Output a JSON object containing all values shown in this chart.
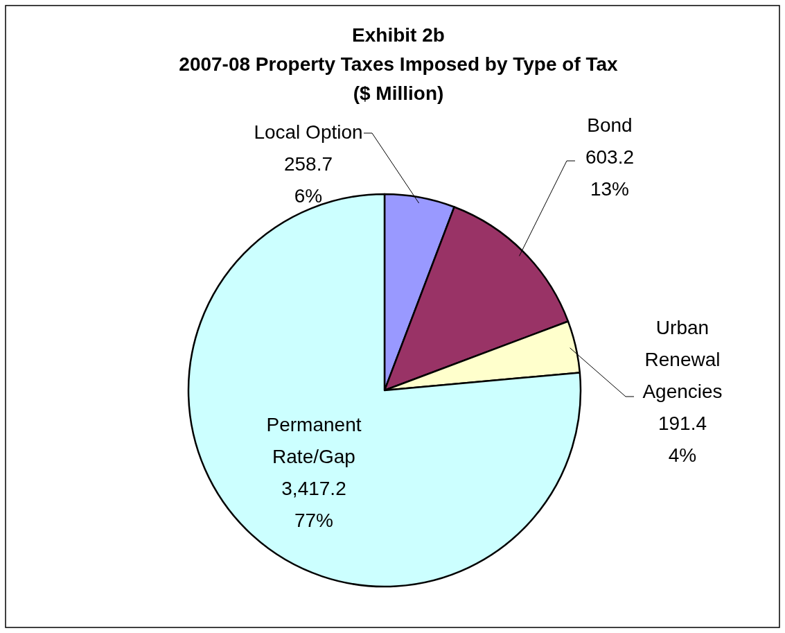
{
  "chart_data": {
    "type": "pie",
    "title": "Exhibit 2b\n2007-08 Property Taxes Imposed by Type of Tax\n($ Million)",
    "categories": [
      "Local Option",
      "Bond",
      "Urban Renewal Agencies",
      "Permanent Rate/Gap"
    ],
    "values": [
      258.7,
      603.2,
      191.4,
      3417.2
    ],
    "colors": [
      "#9999ff",
      "#993366",
      "#ffffcc",
      "#ccffff"
    ],
    "value_labels": [
      "258.7\n6%",
      "603.2\n13%",
      "191.4\n4%",
      "3,417.2\n77%"
    ]
  }
}
